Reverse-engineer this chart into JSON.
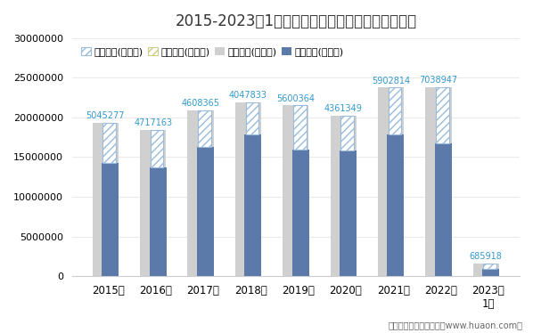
{
  "title": "2015-2023年1月江苏省外商投资企业进出口差额图",
  "categories": [
    "2015年",
    "2016年",
    "2017年",
    "2018年",
    "2019年",
    "2020年",
    "2021年",
    "2022年",
    "2023年\n1月"
  ],
  "export_total": [
    19336939,
    18418024,
    20906042,
    21906537,
    21529513,
    20228025,
    23761065,
    23802178,
    1576567
  ],
  "import_total": [
    14291662,
    13700861,
    16297677,
    17858704,
    15929149,
    15866676,
    17858251,
    16763231,
    890649
  ],
  "surplus": [
    5045277,
    4717163,
    4608365,
    4047833,
    5600364,
    4361349,
    5902814,
    7038947,
    685918
  ],
  "legend_labels": [
    "贸易顺差(万美元)",
    "贸易逆差(万美元)",
    "出口总额(万美元)",
    "进口总额(万美元)"
  ],
  "export_color": "#d0d0d0",
  "import_color": "#5b7aaa",
  "hatch_color": "#b0c8e0",
  "surplus_label_color": "#3399cc",
  "ylim": [
    0,
    30000000
  ],
  "yticks": [
    0,
    5000000,
    10000000,
    15000000,
    20000000,
    25000000,
    30000000
  ],
  "background_color": "#ffffff",
  "title_fontsize": 12,
  "legend_fontsize": 8,
  "label_fontsize": 7,
  "footer": "制图：华经产业研究院（www.huaon.com）"
}
